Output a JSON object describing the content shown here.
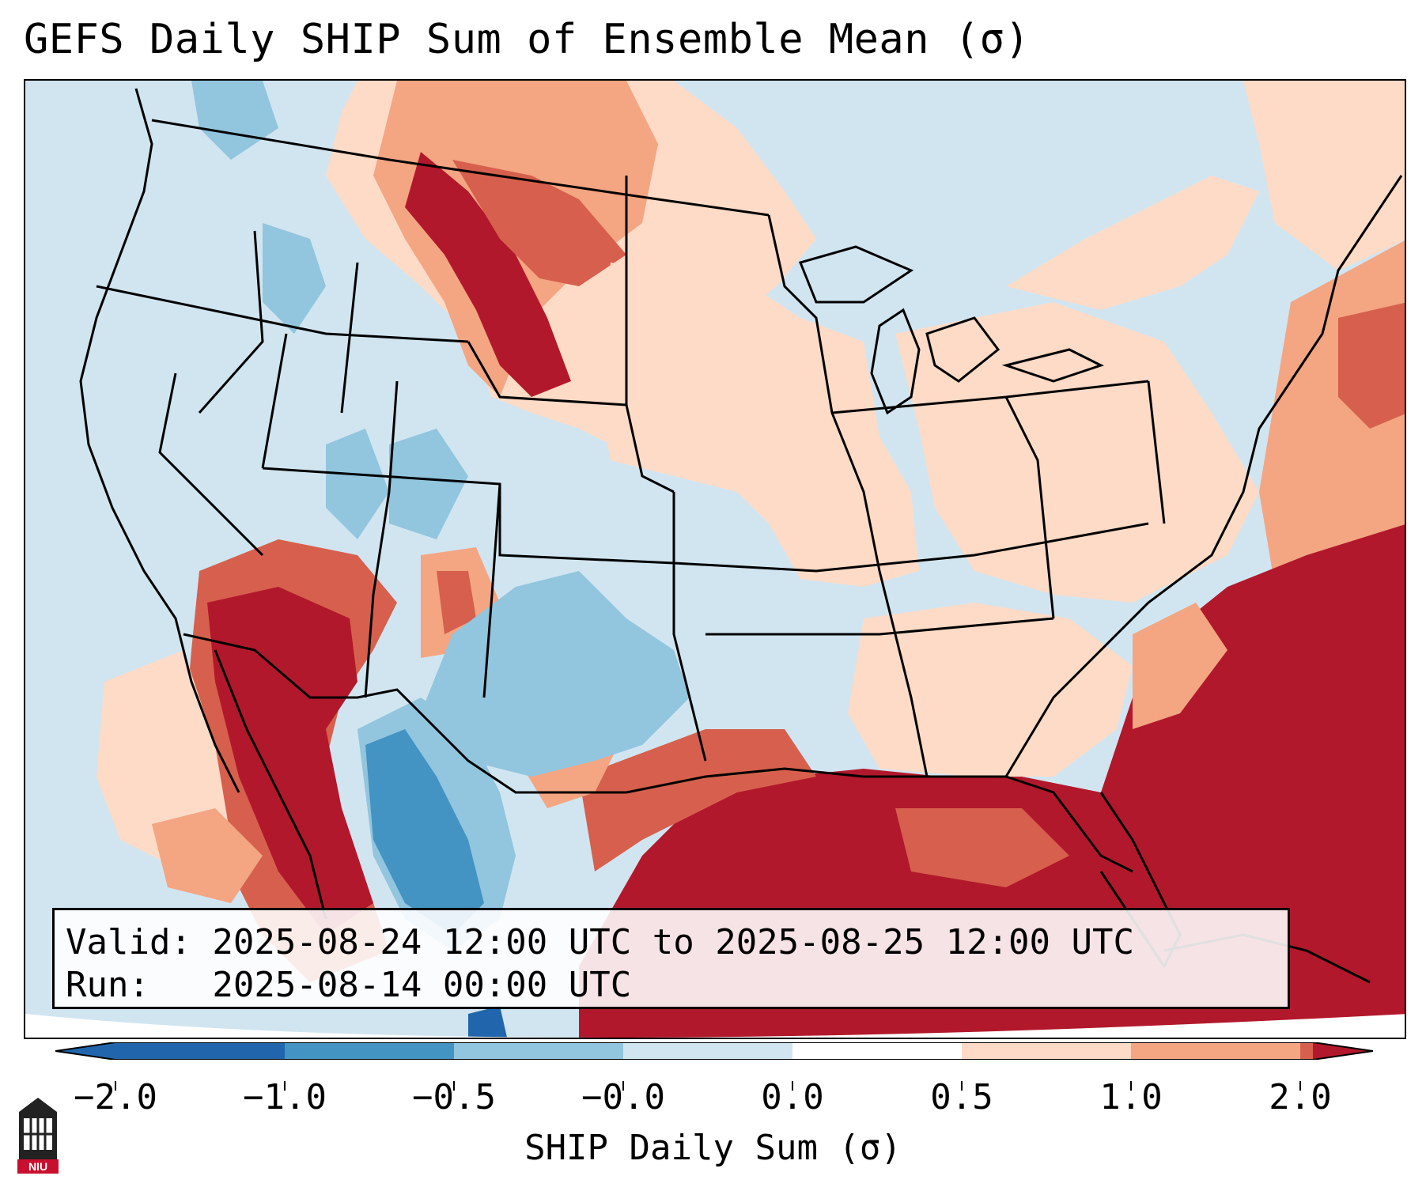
{
  "title": "GEFS Daily SHIP Sum of Ensemble Mean (σ)",
  "info": {
    "valid_line": "Valid: 2025-08-24 12:00 UTC to 2025-08-25 12:00 UTC",
    "run_line": "Run:   2025-08-14 00:00 UTC"
  },
  "colorbar": {
    "label": "SHIP Daily Sum (σ)",
    "ticks": [
      "−2.0",
      "−1.0",
      "−0.5",
      "−0.0",
      "0.0",
      "0.5",
      "1.0",
      "2.0"
    ],
    "colors": [
      "#2166ac",
      "#4393c3",
      "#92c5de",
      "#d1e5f0",
      "#ffffff",
      "#fddbc7",
      "#f4a582",
      "#d6604d",
      "#b2182b"
    ]
  },
  "logo": {
    "icon": "niu-logo-icon",
    "text": "NIU"
  }
}
